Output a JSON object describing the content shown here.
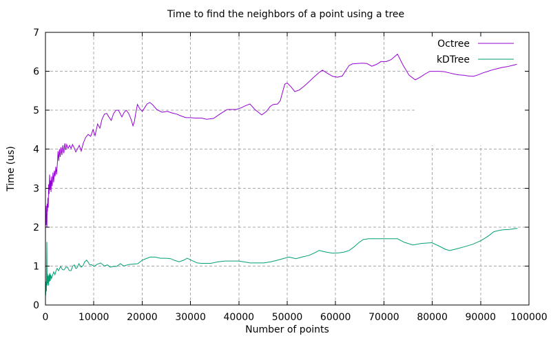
{
  "chart_data": {
    "type": "line",
    "title": "Time to find the neighbors of a point using a tree",
    "xlabel": "Number of points",
    "ylabel": "Time (us)",
    "xlim": [
      0,
      100000
    ],
    "ylim": [
      0,
      7
    ],
    "xticks": {
      "values": [
        0,
        10000,
        20000,
        30000,
        40000,
        50000,
        60000,
        70000,
        80000,
        90000,
        100000
      ],
      "labels": [
        "0",
        "10000",
        "20000",
        "30000",
        "40000",
        "50000",
        "60000",
        "70000",
        "80000",
        "90000",
        "100000"
      ]
    },
    "yticks": {
      "values": [
        0,
        1,
        2,
        3,
        4,
        5,
        6,
        7
      ],
      "labels": [
        "0",
        "1",
        "2",
        "3",
        "4",
        "5",
        "6",
        "7"
      ]
    },
    "grid": {
      "visible": true,
      "style": "dashed",
      "color": "#a8a8a8"
    },
    "background": "#ffffff",
    "axis_color": "#000000",
    "legend": {
      "position": "top-right",
      "entries": [
        "Octree",
        "kDTree"
      ]
    },
    "series": [
      {
        "name": "Octree",
        "color": "#9400d3",
        "points": [
          [
            50,
            2.3
          ],
          [
            100,
            2.05
          ],
          [
            150,
            2.55
          ],
          [
            200,
            2.2
          ],
          [
            300,
            2.0
          ],
          [
            350,
            2.6
          ],
          [
            420,
            2.4
          ],
          [
            500,
            2.75
          ],
          [
            580,
            2.5
          ],
          [
            660,
            3.1
          ],
          [
            750,
            2.85
          ],
          [
            850,
            3.35
          ],
          [
            950,
            2.95
          ],
          [
            1050,
            3.2
          ],
          [
            1150,
            2.9
          ],
          [
            1250,
            3.3
          ],
          [
            1400,
            3.05
          ],
          [
            1550,
            3.4
          ],
          [
            1700,
            3.15
          ],
          [
            1850,
            3.45
          ],
          [
            2000,
            3.3
          ],
          [
            2150,
            3.55
          ],
          [
            2300,
            3.35
          ],
          [
            2450,
            3.6
          ],
          [
            2600,
            3.95
          ],
          [
            2750,
            3.7
          ],
          [
            2900,
            4.0
          ],
          [
            3050,
            3.8
          ],
          [
            3200,
            4.05
          ],
          [
            3400,
            3.85
          ],
          [
            3600,
            4.1
          ],
          [
            3800,
            3.9
          ],
          [
            4000,
            4.15
          ],
          [
            4200,
            3.98
          ],
          [
            4400,
            4.12
          ],
          [
            4700,
            4.02
          ],
          [
            5000,
            4.1
          ],
          [
            5300,
            4.02
          ],
          [
            5600,
            4.12
          ],
          [
            5900,
            4.05
          ],
          [
            6270,
            3.93
          ],
          [
            6600,
            4.0
          ],
          [
            7000,
            4.1
          ],
          [
            7400,
            3.95
          ],
          [
            7800,
            4.15
          ],
          [
            8300,
            4.3
          ],
          [
            8830,
            4.38
          ],
          [
            9360,
            4.33
          ],
          [
            9830,
            4.5
          ],
          [
            10260,
            4.35
          ],
          [
            10780,
            4.65
          ],
          [
            11250,
            4.54
          ],
          [
            11700,
            4.77
          ],
          [
            12200,
            4.9
          ],
          [
            12680,
            4.92
          ],
          [
            13100,
            4.83
          ],
          [
            13600,
            4.74
          ],
          [
            14100,
            4.92
          ],
          [
            14600,
            5.0
          ],
          [
            15100,
            5.0
          ],
          [
            15800,
            4.83
          ],
          [
            16300,
            4.95
          ],
          [
            16700,
            5.0
          ],
          [
            17200,
            4.92
          ],
          [
            17700,
            4.77
          ],
          [
            18100,
            4.6
          ],
          [
            18400,
            4.72
          ],
          [
            18700,
            4.95
          ],
          [
            19030,
            5.15
          ],
          [
            19500,
            5.04
          ],
          [
            20030,
            4.97
          ],
          [
            20500,
            5.06
          ],
          [
            21000,
            5.16
          ],
          [
            21600,
            5.2
          ],
          [
            22170,
            5.14
          ],
          [
            23000,
            5.02
          ],
          [
            24070,
            4.95
          ],
          [
            25210,
            4.97
          ],
          [
            26200,
            4.93
          ],
          [
            27200,
            4.9
          ],
          [
            28100,
            4.85
          ],
          [
            29060,
            4.81
          ],
          [
            30000,
            4.81
          ],
          [
            31000,
            4.8
          ],
          [
            32300,
            4.8
          ],
          [
            33330,
            4.77
          ],
          [
            34760,
            4.79
          ],
          [
            36180,
            4.91
          ],
          [
            37610,
            5.02
          ],
          [
            38500,
            5.02
          ],
          [
            39460,
            5.02
          ],
          [
            40450,
            5.06
          ],
          [
            41400,
            5.12
          ],
          [
            42300,
            5.16
          ],
          [
            43300,
            5.02
          ],
          [
            44730,
            4.88
          ],
          [
            45710,
            4.97
          ],
          [
            46500,
            5.1
          ],
          [
            47150,
            5.15
          ],
          [
            48000,
            5.16
          ],
          [
            48570,
            5.25
          ],
          [
            49000,
            5.45
          ],
          [
            49500,
            5.67
          ],
          [
            50000,
            5.7
          ],
          [
            50800,
            5.6
          ],
          [
            51560,
            5.48
          ],
          [
            52500,
            5.52
          ],
          [
            53500,
            5.62
          ],
          [
            54500,
            5.73
          ],
          [
            55500,
            5.85
          ],
          [
            56600,
            5.97
          ],
          [
            57300,
            6.03
          ],
          [
            58300,
            5.95
          ],
          [
            59400,
            5.87
          ],
          [
            60400,
            5.85
          ],
          [
            61400,
            5.88
          ],
          [
            62000,
            6.0
          ],
          [
            62800,
            6.15
          ],
          [
            63500,
            6.19
          ],
          [
            64500,
            6.2
          ],
          [
            65500,
            6.21
          ],
          [
            66500,
            6.2
          ],
          [
            67500,
            6.13
          ],
          [
            68500,
            6.18
          ],
          [
            69400,
            6.25
          ],
          [
            70500,
            6.25
          ],
          [
            71500,
            6.3
          ],
          [
            72800,
            6.44
          ],
          [
            74000,
            6.15
          ],
          [
            75200,
            5.9
          ],
          [
            76500,
            5.78
          ],
          [
            77500,
            5.85
          ],
          [
            78500,
            5.93
          ],
          [
            79500,
            6.0
          ],
          [
            80500,
            6.0
          ],
          [
            81500,
            6.0
          ],
          [
            82500,
            5.99
          ],
          [
            83500,
            5.96
          ],
          [
            84500,
            5.93
          ],
          [
            85500,
            5.91
          ],
          [
            86500,
            5.9
          ],
          [
            87500,
            5.88
          ],
          [
            88500,
            5.87
          ],
          [
            89500,
            5.91
          ],
          [
            90500,
            5.96
          ],
          [
            91500,
            6.0
          ],
          [
            92500,
            6.04
          ],
          [
            93500,
            6.07
          ],
          [
            94500,
            6.1
          ],
          [
            95500,
            6.12
          ],
          [
            96500,
            6.15
          ],
          [
            97500,
            6.18
          ]
        ]
      },
      {
        "name": "kDTree",
        "color": "#009e73",
        "points": [
          [
            50,
            0.25
          ],
          [
            120,
            0.6
          ],
          [
            200,
            0.35
          ],
          [
            280,
            1.62
          ],
          [
            350,
            0.5
          ],
          [
            420,
            0.8
          ],
          [
            500,
            0.55
          ],
          [
            580,
            0.75
          ],
          [
            660,
            0.5
          ],
          [
            740,
            0.78
          ],
          [
            820,
            0.6
          ],
          [
            900,
            0.82
          ],
          [
            1000,
            0.62
          ],
          [
            1100,
            0.78
          ],
          [
            1250,
            0.68
          ],
          [
            1470,
            0.76
          ],
          [
            1700,
            0.85
          ],
          [
            1950,
            0.78
          ],
          [
            2200,
            0.88
          ],
          [
            2420,
            0.94
          ],
          [
            2700,
            0.88
          ],
          [
            3130,
            0.99
          ],
          [
            3500,
            0.91
          ],
          [
            3850,
            0.9
          ],
          [
            4200,
            0.97
          ],
          [
            4560,
            0.97
          ],
          [
            4900,
            0.89
          ],
          [
            5270,
            0.88
          ],
          [
            5650,
            1.0
          ],
          [
            5980,
            1.03
          ],
          [
            6200,
            0.95
          ],
          [
            6450,
            0.94
          ],
          [
            6930,
            1.06
          ],
          [
            7400,
            0.97
          ],
          [
            7800,
            1.02
          ],
          [
            8120,
            1.11
          ],
          [
            8500,
            1.15
          ],
          [
            8830,
            1.1
          ],
          [
            9100,
            1.04
          ],
          [
            9600,
            1.03
          ],
          [
            10070,
            0.99
          ],
          [
            10600,
            1.04
          ],
          [
            11400,
            1.08
          ],
          [
            12200,
            1.0
          ],
          [
            12800,
            1.03
          ],
          [
            13400,
            0.97
          ],
          [
            14000,
            0.99
          ],
          [
            14700,
            0.99
          ],
          [
            15500,
            1.06
          ],
          [
            16200,
            1.0
          ],
          [
            17200,
            1.04
          ],
          [
            18200,
            1.05
          ],
          [
            19100,
            1.06
          ],
          [
            20000,
            1.15
          ],
          [
            21000,
            1.2
          ],
          [
            21650,
            1.23
          ],
          [
            22650,
            1.23
          ],
          [
            23800,
            1.2
          ],
          [
            25000,
            1.2
          ],
          [
            25900,
            1.19
          ],
          [
            26600,
            1.15
          ],
          [
            27600,
            1.11
          ],
          [
            28600,
            1.15
          ],
          [
            29300,
            1.2
          ],
          [
            30500,
            1.13
          ],
          [
            31400,
            1.08
          ],
          [
            32300,
            1.07
          ],
          [
            33300,
            1.07
          ],
          [
            34200,
            1.07
          ],
          [
            35700,
            1.11
          ],
          [
            37100,
            1.13
          ],
          [
            38500,
            1.13
          ],
          [
            40000,
            1.13
          ],
          [
            41400,
            1.1
          ],
          [
            42300,
            1.08
          ],
          [
            43500,
            1.08
          ],
          [
            45200,
            1.08
          ],
          [
            46600,
            1.11
          ],
          [
            48000,
            1.15
          ],
          [
            49400,
            1.2
          ],
          [
            50400,
            1.23
          ],
          [
            51800,
            1.19
          ],
          [
            53300,
            1.24
          ],
          [
            54400,
            1.27
          ],
          [
            55500,
            1.33
          ],
          [
            56600,
            1.4
          ],
          [
            58000,
            1.36
          ],
          [
            59400,
            1.33
          ],
          [
            60700,
            1.34
          ],
          [
            61800,
            1.36
          ],
          [
            62800,
            1.4
          ],
          [
            63800,
            1.49
          ],
          [
            64800,
            1.6
          ],
          [
            65700,
            1.68
          ],
          [
            66800,
            1.7
          ],
          [
            68000,
            1.7
          ],
          [
            69500,
            1.7
          ],
          [
            71000,
            1.7
          ],
          [
            72800,
            1.7
          ],
          [
            74200,
            1.61
          ],
          [
            76000,
            1.54
          ],
          [
            77700,
            1.58
          ],
          [
            79900,
            1.6
          ],
          [
            81300,
            1.52
          ],
          [
            82700,
            1.43
          ],
          [
            83600,
            1.4
          ],
          [
            85000,
            1.44
          ],
          [
            86500,
            1.49
          ],
          [
            88400,
            1.56
          ],
          [
            90000,
            1.65
          ],
          [
            90700,
            1.7
          ],
          [
            91700,
            1.78
          ],
          [
            92700,
            1.88
          ],
          [
            93700,
            1.91
          ],
          [
            94600,
            1.93
          ],
          [
            96000,
            1.94
          ],
          [
            97000,
            1.96
          ],
          [
            97600,
            1.97
          ]
        ]
      }
    ]
  }
}
